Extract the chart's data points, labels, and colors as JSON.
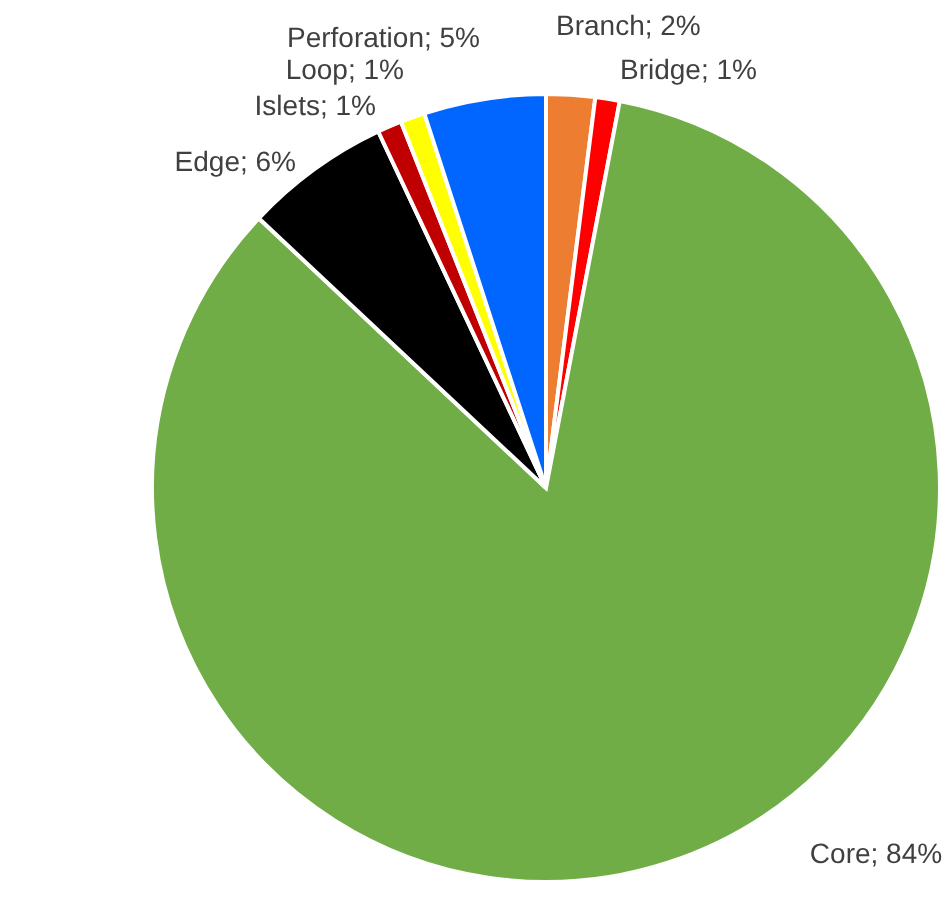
{
  "chart_data": {
    "type": "pie",
    "categories": [
      "Branch",
      "Bridge",
      "Core",
      "Edge",
      "Islets",
      "Loop",
      "Perforation"
    ],
    "values": [
      2,
      1,
      84,
      6,
      1,
      1,
      5
    ],
    "value_labels": [
      "2%",
      "1%",
      "84%",
      "6%",
      "1%",
      "1%",
      "5%"
    ],
    "colors": [
      "#ed7d31",
      "#ff0000",
      "#70ad47",
      "#000000",
      "#c00000",
      "#ffff00",
      "#0066ff"
    ],
    "legend": false
  }
}
